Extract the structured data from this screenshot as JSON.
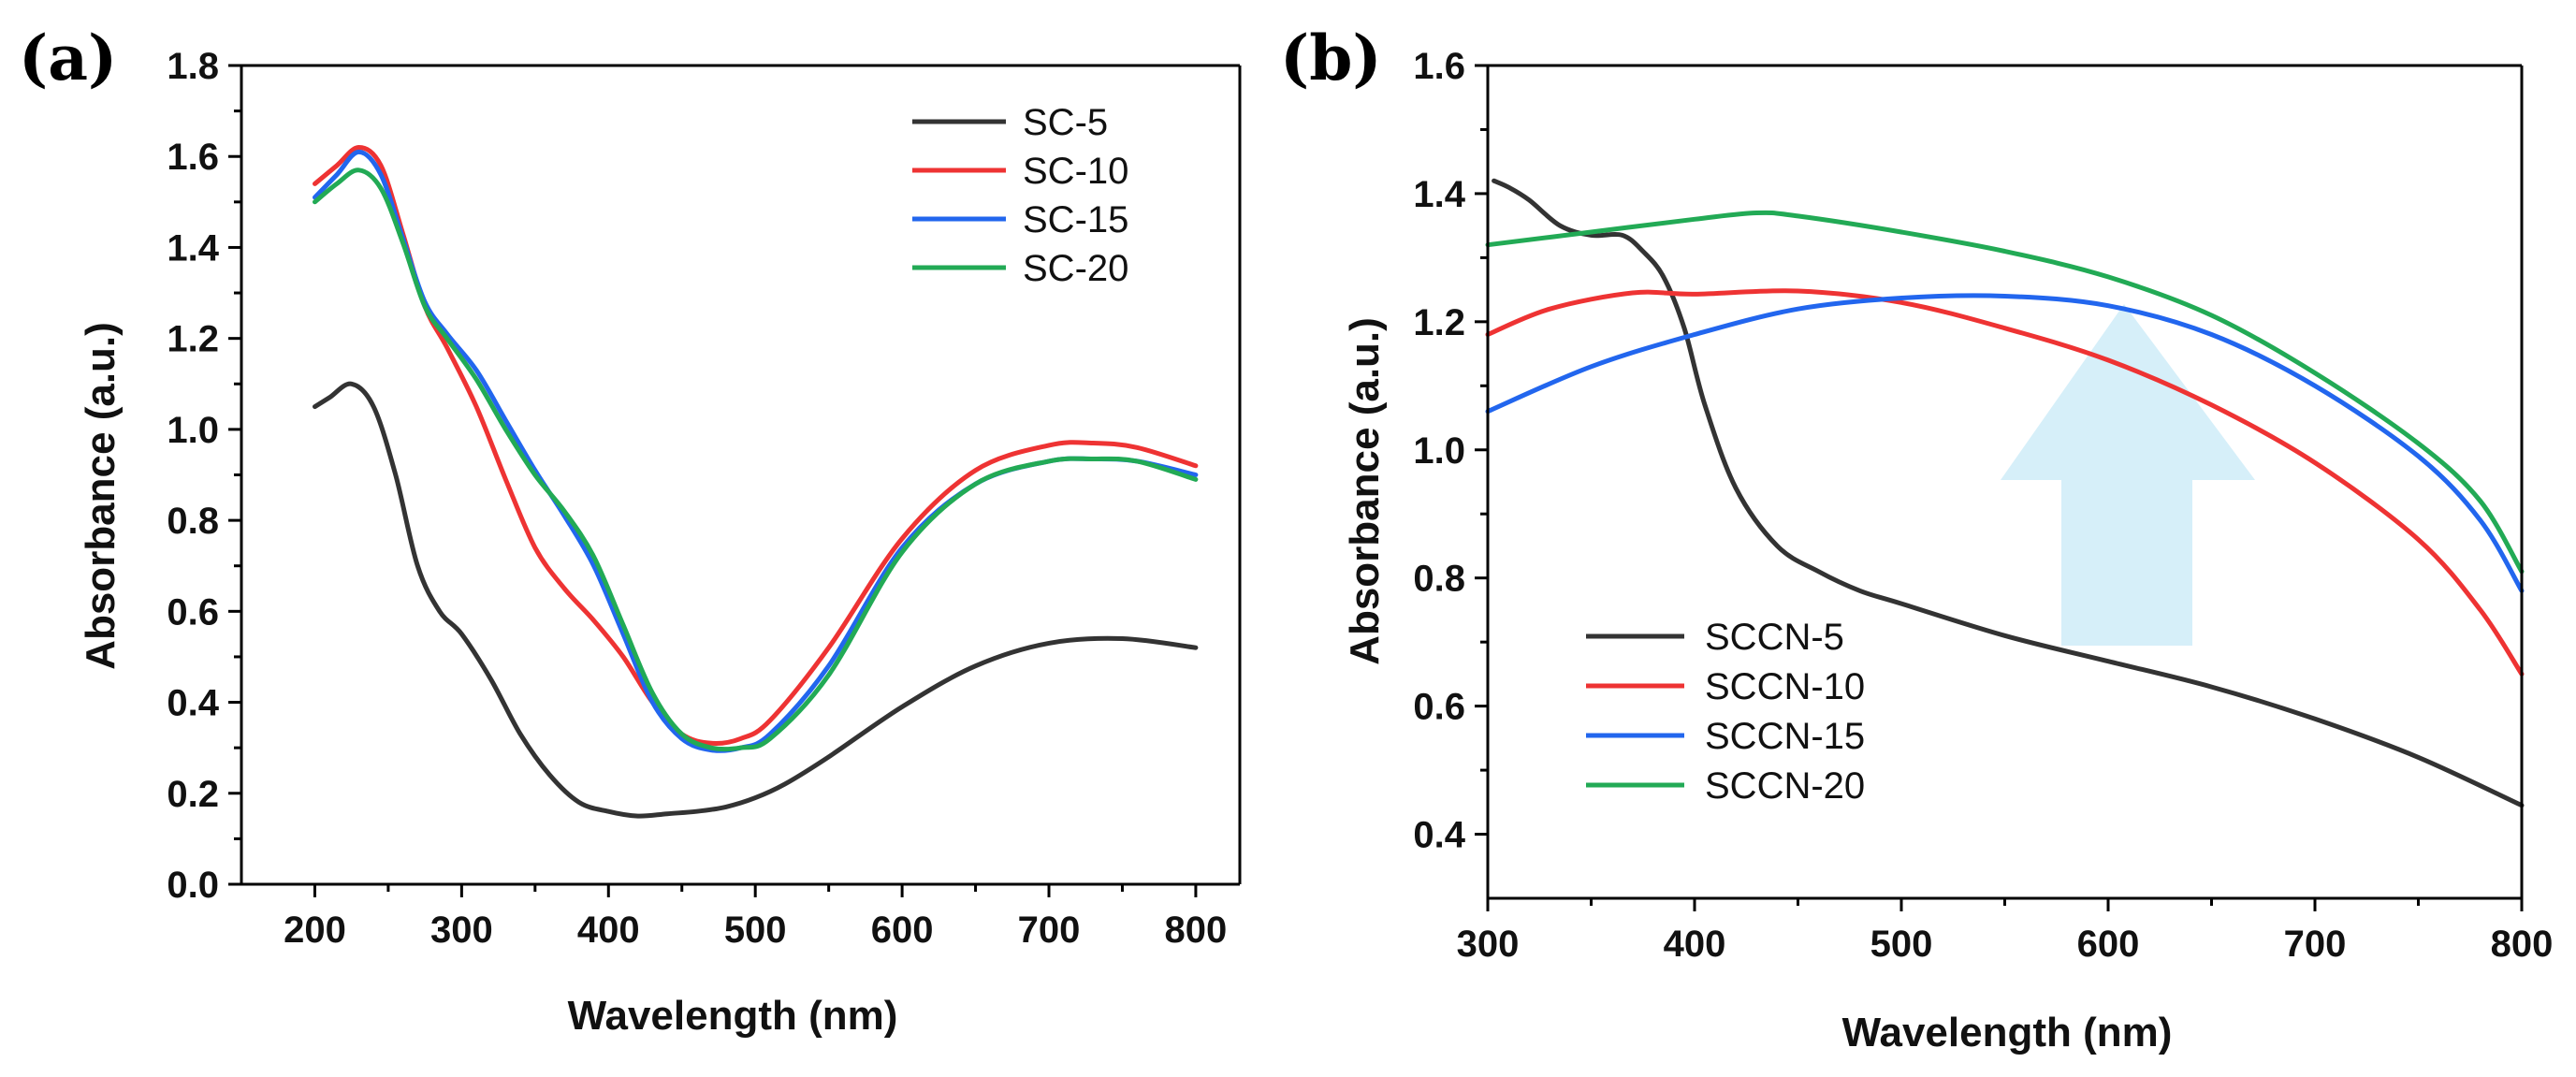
{
  "chart_data": [
    {
      "type": "line",
      "panel_label": "(a)",
      "xlabel": "Wavelength (nm)",
      "ylabel": "Absorbance (a.u.)",
      "xlim": [
        150,
        830
      ],
      "ylim": [
        0.0,
        1.8
      ],
      "xticks": [
        200,
        300,
        400,
        500,
        600,
        700,
        800
      ],
      "yticks": [
        0.0,
        0.2,
        0.4,
        0.6,
        0.8,
        1.0,
        1.2,
        1.4,
        1.6,
        1.8
      ],
      "xtick_labels": [
        "200",
        "300",
        "400",
        "500",
        "600",
        "700",
        "800"
      ],
      "ytick_labels": [
        "0.0",
        "0.2",
        "0.4",
        "0.6",
        "0.8",
        "1.0",
        "1.2",
        "1.4",
        "1.6",
        "1.8"
      ],
      "grid": false,
      "legend_position": "top-right",
      "series": [
        {
          "name": "SC-5",
          "color": "#333333",
          "x": [
            200,
            210,
            225,
            240,
            255,
            270,
            285,
            300,
            320,
            340,
            360,
            380,
            400,
            420,
            440,
            460,
            480,
            500,
            520,
            550,
            600,
            650,
            700,
            750,
            800
          ],
          "y": [
            1.05,
            1.07,
            1.1,
            1.05,
            0.9,
            0.7,
            0.6,
            0.55,
            0.45,
            0.33,
            0.24,
            0.18,
            0.16,
            0.15,
            0.155,
            0.16,
            0.17,
            0.19,
            0.22,
            0.28,
            0.39,
            0.48,
            0.53,
            0.54,
            0.52
          ]
        },
        {
          "name": "SC-10",
          "color": "#ee3333",
          "x": [
            200,
            215,
            230,
            245,
            260,
            275,
            290,
            310,
            330,
            350,
            370,
            390,
            410,
            430,
            450,
            470,
            490,
            510,
            550,
            600,
            650,
            700,
            730,
            760,
            800
          ],
          "y": [
            1.54,
            1.58,
            1.62,
            1.58,
            1.43,
            1.27,
            1.18,
            1.05,
            0.89,
            0.74,
            0.65,
            0.58,
            0.5,
            0.4,
            0.33,
            0.31,
            0.32,
            0.36,
            0.52,
            0.76,
            0.91,
            0.965,
            0.97,
            0.96,
            0.92
          ]
        },
        {
          "name": "SC-15",
          "color": "#2266ee",
          "x": [
            200,
            215,
            230,
            245,
            260,
            275,
            290,
            310,
            330,
            350,
            370,
            390,
            410,
            430,
            450,
            470,
            490,
            510,
            550,
            600,
            650,
            700,
            730,
            760,
            800
          ],
          "y": [
            1.51,
            1.56,
            1.61,
            1.56,
            1.42,
            1.28,
            1.21,
            1.13,
            1.02,
            0.91,
            0.81,
            0.7,
            0.55,
            0.4,
            0.32,
            0.295,
            0.3,
            0.33,
            0.48,
            0.74,
            0.88,
            0.93,
            0.935,
            0.93,
            0.9
          ]
        },
        {
          "name": "SC-20",
          "color": "#22aa55",
          "x": [
            200,
            215,
            230,
            245,
            260,
            275,
            290,
            310,
            330,
            350,
            370,
            390,
            410,
            430,
            450,
            470,
            490,
            510,
            550,
            600,
            650,
            700,
            730,
            760,
            800
          ],
          "y": [
            1.5,
            1.54,
            1.57,
            1.53,
            1.41,
            1.27,
            1.2,
            1.11,
            1.0,
            0.9,
            0.82,
            0.72,
            0.57,
            0.42,
            0.33,
            0.3,
            0.3,
            0.32,
            0.46,
            0.73,
            0.88,
            0.93,
            0.935,
            0.93,
            0.89
          ]
        }
      ]
    },
    {
      "type": "line",
      "panel_label": "(b)",
      "xlabel": "Wavelength (nm)",
      "ylabel": "Absorbance (a.u.)",
      "xlim": [
        300,
        800
      ],
      "ylim": [
        0.3,
        1.6
      ],
      "xticks": [
        300,
        400,
        500,
        600,
        700,
        800
      ],
      "yticks": [
        0.4,
        0.6,
        0.8,
        1.0,
        1.2,
        1.4,
        1.6
      ],
      "xtick_labels": [
        "300",
        "400",
        "500",
        "600",
        "700",
        "800"
      ],
      "ytick_labels": [
        "0.4",
        "0.6",
        "0.8",
        "1.0",
        "1.2",
        "1.4",
        "1.6"
      ],
      "grid": false,
      "legend_position": "bottom-left",
      "annotation": "upward arrow (light blue) indicating increase in absorbance",
      "series": [
        {
          "name": "SCCN-5",
          "color": "#333333",
          "x": [
            303,
            310,
            320,
            335,
            350,
            365,
            375,
            385,
            395,
            405,
            420,
            440,
            460,
            480,
            500,
            550,
            600,
            650,
            700,
            750,
            800
          ],
          "y": [
            1.42,
            1.41,
            1.39,
            1.35,
            1.335,
            1.335,
            1.31,
            1.27,
            1.19,
            1.07,
            0.94,
            0.85,
            0.81,
            0.78,
            0.76,
            0.71,
            0.67,
            0.63,
            0.58,
            0.52,
            0.445
          ]
        },
        {
          "name": "SCCN-10",
          "color": "#ee3333",
          "x": [
            300,
            330,
            370,
            400,
            450,
            500,
            550,
            600,
            650,
            700,
            750,
            780,
            800
          ],
          "y": [
            1.18,
            1.22,
            1.245,
            1.243,
            1.248,
            1.23,
            1.19,
            1.14,
            1.07,
            0.98,
            0.86,
            0.75,
            0.65
          ]
        },
        {
          "name": "SCCN-15",
          "color": "#2266ee",
          "x": [
            300,
            350,
            400,
            450,
            500,
            550,
            600,
            650,
            700,
            750,
            780,
            800
          ],
          "y": [
            1.06,
            1.13,
            1.18,
            1.22,
            1.237,
            1.24,
            1.225,
            1.18,
            1.1,
            0.99,
            0.89,
            0.78
          ]
        },
        {
          "name": "SCCN-20",
          "color": "#22aa55",
          "x": [
            300,
            350,
            400,
            430,
            450,
            500,
            550,
            600,
            650,
            700,
            750,
            780,
            800
          ],
          "y": [
            1.32,
            1.34,
            1.36,
            1.37,
            1.365,
            1.34,
            1.31,
            1.27,
            1.21,
            1.12,
            1.01,
            0.92,
            0.81
          ]
        }
      ]
    }
  ]
}
